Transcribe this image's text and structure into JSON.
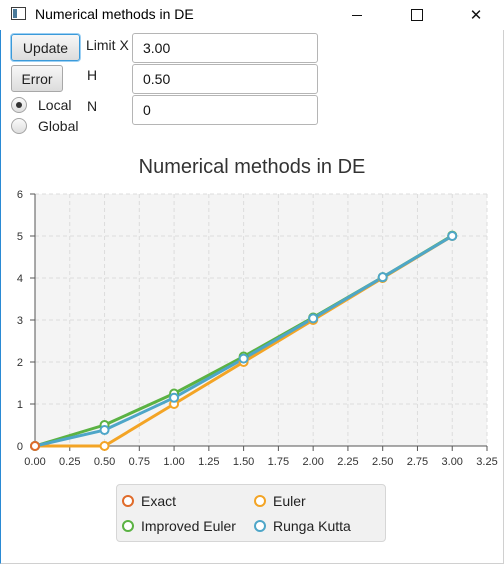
{
  "window": {
    "title": "Numerical methods in DE"
  },
  "controls": {
    "update_label": "Update",
    "error_label": "Error",
    "limit_x_label": "Limit X",
    "h_label": "H",
    "n_label": "N",
    "limit_x_value": "3.00",
    "h_value": "0.50",
    "n_value": "0",
    "radio_local": "Local",
    "radio_global": "Global",
    "selected_radio": "Local"
  },
  "legend": {
    "exact": "Exact",
    "euler": "Euler",
    "improved": "Improved Euler",
    "runge": "Runga Kutta"
  },
  "chart_data": {
    "type": "line",
    "title": "Numerical methods in DE",
    "xlabel": "",
    "ylabel": "",
    "xlim": [
      0,
      3.25
    ],
    "ylim": [
      0,
      6
    ],
    "xticks": [
      "0.00",
      "0.25",
      "0.50",
      "0.75",
      "1.00",
      "1.25",
      "1.50",
      "1.75",
      "2.00",
      "2.25",
      "2.50",
      "2.75",
      "3.00",
      "3.25"
    ],
    "yticks": [
      "0",
      "1",
      "2",
      "3",
      "4",
      "5",
      "6"
    ],
    "grid": true,
    "legend_position": "bottom",
    "series": [
      {
        "name": "Exact",
        "color": "#e06b2a",
        "x": [
          0
        ],
        "y": [
          0
        ]
      },
      {
        "name": "Euler",
        "color": "#f3a425",
        "x": [
          0,
          0.5,
          1.0,
          1.5,
          2.0,
          2.5,
          3.0
        ],
        "y": [
          0,
          0,
          1.0,
          2.0,
          3.0,
          4.0,
          5.0
        ]
      },
      {
        "name": "Improved Euler",
        "color": "#5bb243",
        "x": [
          0,
          0.5,
          1.0,
          1.5,
          2.0,
          2.5,
          3.0
        ],
        "y": [
          0,
          0.5,
          1.25,
          2.13,
          3.06,
          4.02,
          5.01
        ]
      },
      {
        "name": "Runga Kutta",
        "color": "#4ea6c8",
        "x": [
          0,
          0.5,
          1.0,
          1.5,
          2.0,
          2.5,
          3.0
        ],
        "y": [
          0,
          0.38,
          1.15,
          2.08,
          3.04,
          4.02,
          5.0
        ]
      }
    ]
  }
}
